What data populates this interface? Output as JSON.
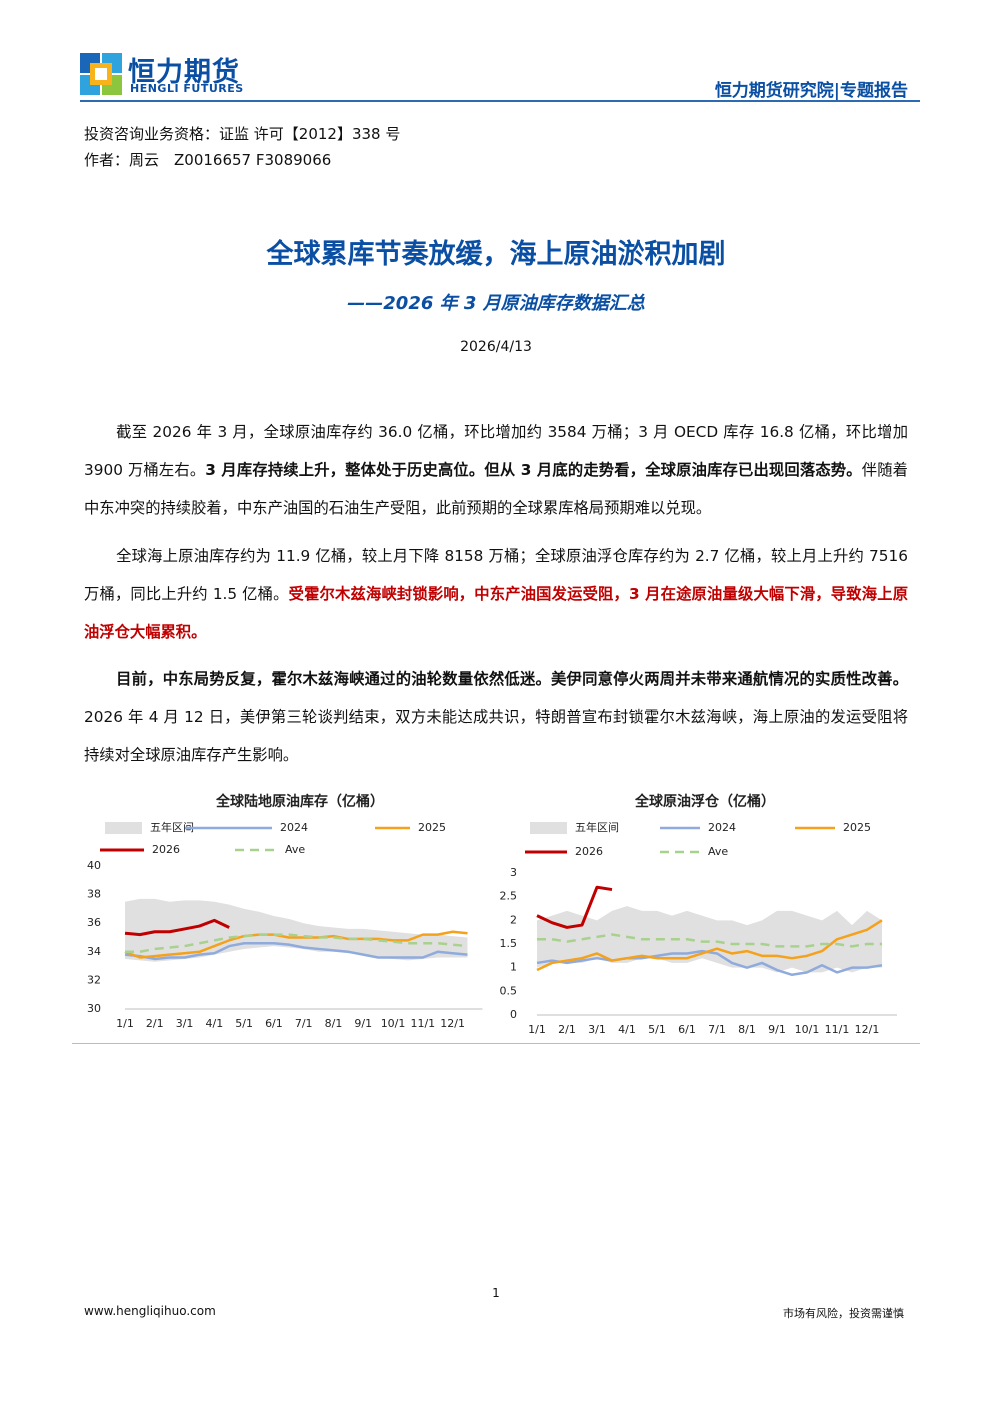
{
  "header": {
    "logo_cn": "恒力期货",
    "logo_en": "HENGLI FUTURES",
    "right": "恒力期货研究院|专题报告"
  },
  "info": [
    "投资咨询业务资格：证监 许可【2012】338 号",
    "作者：周云　Z0016657 F3089066"
  ],
  "title": "全球累库节奏放缓，海上原油淤积加剧",
  "subtitle": "——2026 年 3 月原油库存数据汇总",
  "date": "2026/4/13",
  "paragraphs": [
    [
      "截至 2026 年 3 月，全球原油库存约 36.0 亿桶，环比增加约 3584 万桶；3 月 OECD 库存 16.8 亿桶，环比增加 3900 万桶左右。",
      "3 月库存持续上升，整体处于历史高位。但从 3 月底的走势看，全球原油库存已出现回落态势。",
      "伴随着中东冲突的持续胶着，中东产油国的石油生产受阻，此前预期的全球累库格局预期难以兑现。"
    ],
    [
      "全球海上原油库存约为 11.9 亿桶，较上月下降 8158 万桶；全球原油浮仓库存约为 2.7 亿桶，较上月上升约 7516 万桶，同比上升约 1.5 亿桶。",
      "受霍尔木兹海峡封锁影响，中东产油国发运受阻，3 月在途原油量级大幅下滑，导致海上原油浮仓大幅累积。"
    ],
    [
      "目前，中东局势反复，霍尔木兹海峡通过的油轮数量依然低迷。美伊同意停火两周并未带来通航情况的实质性改善。",
      "2026 年 4 月 12 日，美伊第三轮谈判结束，双方未能达成共识，特朗普宣布封锁霍尔木兹海峡，海上原油的发运受阻将持续对全球原油库存产生影响。"
    ]
  ],
  "chart_data": [
    {
      "type": "line",
      "title": "全球陆地原油库存（亿桶）",
      "categories": [
        "1/1",
        null,
        "2/1",
        null,
        "3/1",
        null,
        "4/1",
        null,
        "5/1",
        null,
        "6/1",
        null,
        "7/1",
        null,
        "8/1",
        null,
        "9/1",
        null,
        "10/1",
        null,
        "11/1",
        null,
        "12/1",
        null
      ],
      "ylim": [
        30,
        40
      ],
      "yticks": [
        30,
        32,
        34,
        36,
        38,
        40
      ],
      "series": [
        {
          "name": "五年区间",
          "color": "#e0e0e0",
          "low": [
            33.5,
            33.4,
            33.3,
            33.4,
            33.5,
            33.6,
            33.8,
            34.0,
            34.2,
            34.3,
            34.4,
            34.3,
            34.2,
            34.0,
            34.0,
            33.9,
            33.8,
            33.6,
            33.5,
            33.4,
            33.5,
            33.6,
            33.6,
            33.6
          ],
          "high": [
            37.5,
            37.7,
            37.7,
            37.5,
            37.6,
            37.6,
            37.5,
            37.3,
            37.0,
            36.8,
            36.5,
            36.3,
            36.0,
            35.8,
            35.7,
            35.6,
            35.6,
            35.5,
            35.4,
            35.3,
            35.2,
            35.2,
            35.1,
            35.0
          ]
        },
        {
          "name": "2024",
          "color": "#8faadc",
          "values": [
            33.8,
            33.7,
            33.5,
            33.6,
            33.6,
            33.8,
            33.9,
            34.4,
            34.6,
            34.6,
            34.6,
            34.5,
            34.3,
            34.2,
            34.1,
            34.0,
            33.8,
            33.6,
            33.6,
            33.6,
            33.6,
            34.0,
            33.9,
            33.8
          ]
        },
        {
          "name": "2025",
          "color": "#f4a11b",
          "values": [
            34.0,
            33.6,
            33.7,
            33.8,
            33.9,
            34.0,
            34.4,
            34.8,
            35.1,
            35.2,
            35.2,
            35.0,
            35.0,
            35.0,
            35.1,
            34.9,
            34.9,
            34.9,
            34.8,
            34.8,
            35.2,
            35.2,
            35.4,
            35.3
          ]
        },
        {
          "name": "2026",
          "color": "#c00000",
          "values": [
            35.3,
            35.2,
            35.4,
            35.4,
            35.6,
            35.8,
            36.2,
            35.7,
            null,
            null,
            null,
            null,
            null,
            null,
            null,
            null,
            null,
            null,
            null,
            null,
            null,
            null,
            null,
            null
          ]
        },
        {
          "name": "Ave",
          "color": "#a9d18e",
          "dashed": true,
          "values": [
            34.0,
            34.0,
            34.2,
            34.3,
            34.4,
            34.6,
            34.8,
            35.0,
            35.1,
            35.2,
            35.2,
            35.2,
            35.1,
            35.0,
            35.0,
            34.9,
            34.9,
            34.8,
            34.7,
            34.6,
            34.6,
            34.6,
            34.5,
            34.4
          ]
        }
      ]
    },
    {
      "type": "line",
      "title": "全球原油浮仓（亿桶）",
      "categories": [
        "1/1",
        null,
        "2/1",
        null,
        "3/1",
        null,
        "4/1",
        null,
        "5/1",
        null,
        "6/1",
        null,
        "7/1",
        null,
        "8/1",
        null,
        "9/1",
        null,
        "10/1",
        null,
        "11/1",
        null,
        "12/1",
        null
      ],
      "ylim": [
        0,
        3
      ],
      "yticks": [
        0,
        0.5,
        1,
        1.5,
        2,
        2.5,
        3
      ],
      "series": [
        {
          "name": "五年区间",
          "color": "#e0e0e0",
          "low": [
            1.0,
            1.1,
            1.1,
            1.1,
            1.2,
            1.1,
            1.1,
            1.2,
            1.2,
            1.1,
            1.1,
            1.2,
            1.1,
            1.0,
            1.0,
            1.0,
            0.9,
            1.0,
            0.9,
            0.9,
            1.0,
            0.9,
            1.0,
            1.0
          ],
          "high": [
            2.0,
            2.1,
            2.2,
            2.1,
            2.0,
            2.2,
            2.3,
            2.2,
            2.2,
            2.1,
            2.2,
            2.1,
            2.0,
            2.0,
            1.9,
            2.0,
            2.2,
            2.2,
            2.1,
            2.0,
            2.2,
            1.9,
            2.2,
            2.0
          ]
        },
        {
          "name": "2024",
          "color": "#8faadc",
          "values": [
            1.1,
            1.15,
            1.1,
            1.15,
            1.2,
            1.15,
            1.2,
            1.2,
            1.25,
            1.3,
            1.3,
            1.35,
            1.3,
            1.1,
            1.0,
            1.1,
            0.95,
            0.85,
            0.9,
            1.05,
            0.9,
            1.0,
            1.0,
            1.05
          ]
        },
        {
          "name": "2025",
          "color": "#f4a11b",
          "values": [
            0.95,
            1.1,
            1.15,
            1.2,
            1.3,
            1.15,
            1.2,
            1.25,
            1.2,
            1.2,
            1.2,
            1.3,
            1.4,
            1.3,
            1.35,
            1.25,
            1.25,
            1.2,
            1.25,
            1.35,
            1.6,
            1.7,
            1.8,
            2.0
          ]
        },
        {
          "name": "2026",
          "color": "#c00000",
          "values": [
            2.1,
            1.95,
            1.85,
            1.9,
            2.7,
            2.65,
            null,
            null,
            null,
            null,
            null,
            null,
            null,
            null,
            null,
            null,
            null,
            null,
            null,
            null,
            null,
            null,
            null,
            null
          ]
        },
        {
          "name": "Ave",
          "color": "#a9d18e",
          "dashed": true,
          "values": [
            1.6,
            1.6,
            1.55,
            1.6,
            1.65,
            1.7,
            1.65,
            1.6,
            1.6,
            1.6,
            1.6,
            1.55,
            1.55,
            1.5,
            1.5,
            1.5,
            1.45,
            1.45,
            1.45,
            1.5,
            1.5,
            1.45,
            1.5,
            1.5
          ]
        }
      ]
    }
  ],
  "footer": {
    "page": "1",
    "website": "www.hengliqihuo.com",
    "disclaimer": "市场有风险，投资需谨慎"
  }
}
